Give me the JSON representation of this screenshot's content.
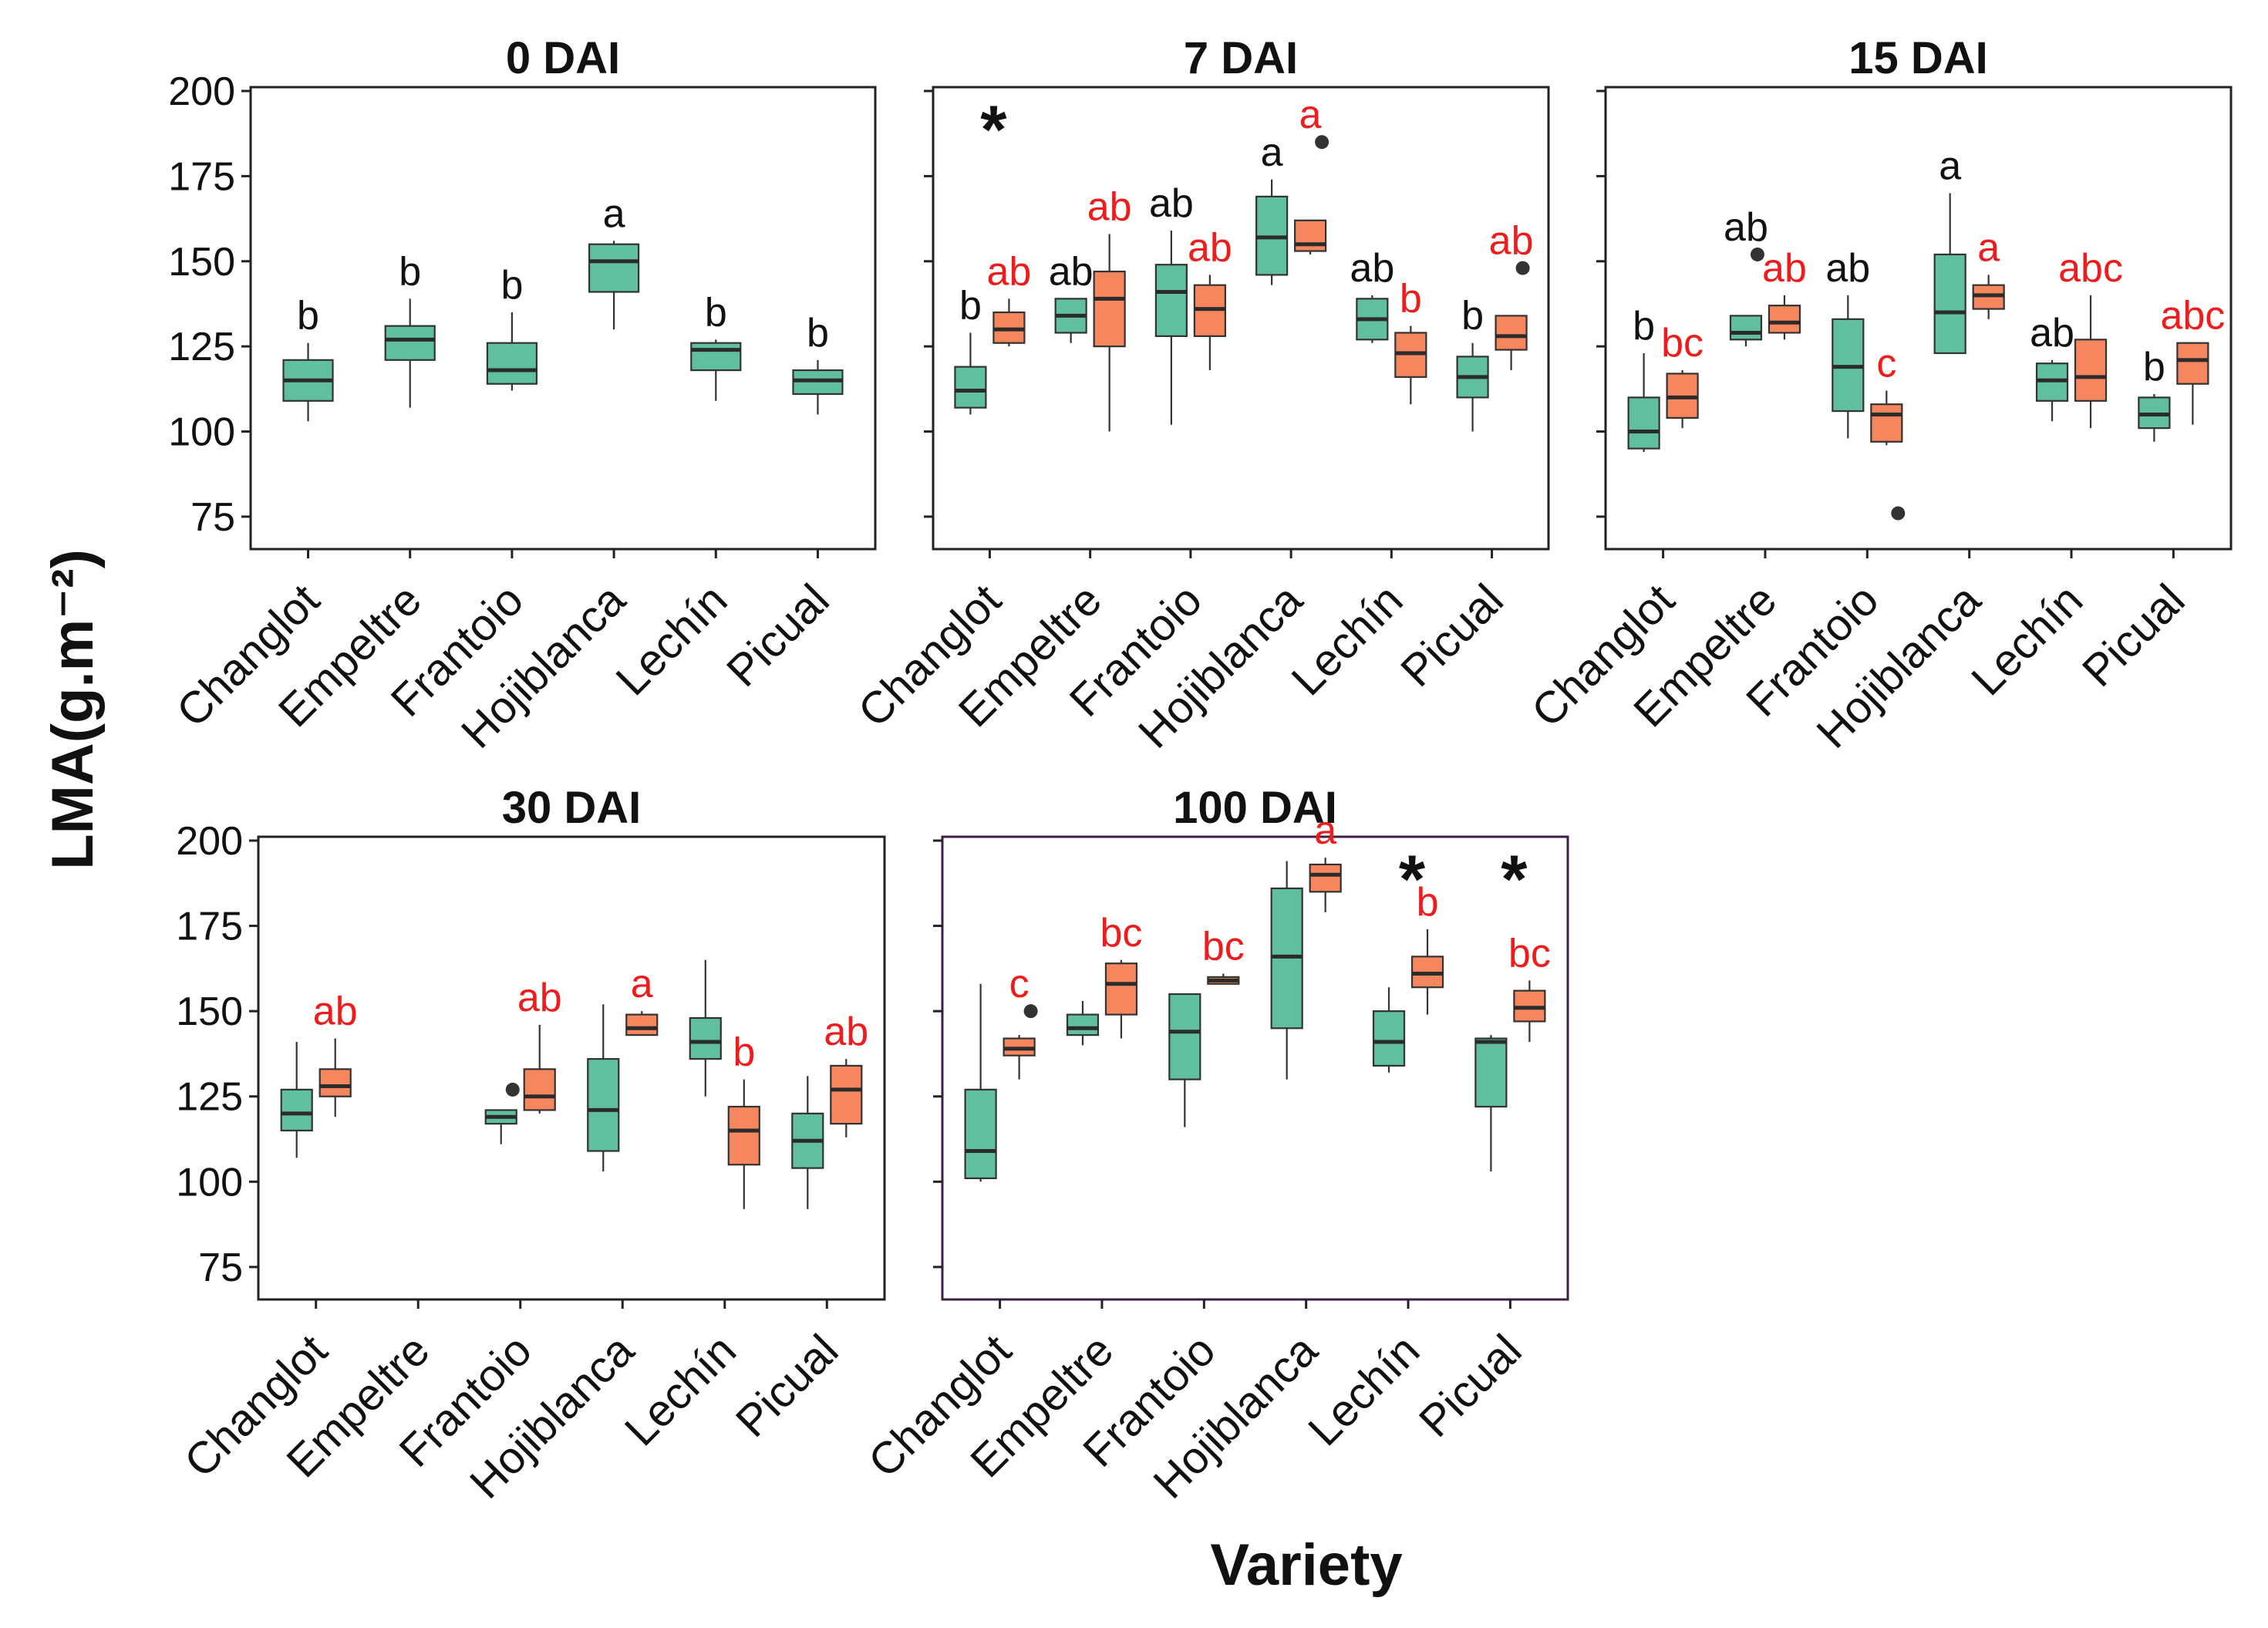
{
  "figure": {
    "ylabel": "LMA(g.m⁻²)",
    "xlabel": "Variety"
  },
  "colors": {
    "series_a": "#5fbf9f",
    "series_b": "#f5865e",
    "letters_a": "#111111",
    "letters_b": "#ee1c1c",
    "frame": "#222222",
    "frame_100": "#3d1f45",
    "median": "#2b2b2b"
  },
  "chart_data": [
    {
      "type": "box",
      "title": "0 DAI",
      "ylim": [
        70,
        200
      ],
      "yticks": [
        75,
        100,
        125,
        150,
        175,
        200
      ],
      "categories": [
        "Changlot",
        "Empeltre",
        "Frantoio",
        "Hojiblanca",
        "Lechín",
        "Picual"
      ],
      "series": [
        {
          "name": "green",
          "boxes": [
            {
              "min": 103,
              "q1": 109,
              "median": 115,
              "q3": 121,
              "max": 126,
              "outliers": [],
              "letter": "b"
            },
            {
              "min": 107,
              "q1": 121,
              "median": 127,
              "q3": 131,
              "max": 139,
              "outliers": [],
              "letter": "b"
            },
            {
              "min": 112,
              "q1": 114,
              "median": 118,
              "q3": 126,
              "max": 135,
              "outliers": [],
              "letter": "b"
            },
            {
              "min": 130,
              "q1": 141,
              "median": 150,
              "q3": 155,
              "max": 156,
              "outliers": [],
              "letter": "a"
            },
            {
              "min": 109,
              "q1": 118,
              "median": 124,
              "q3": 126,
              "max": 127,
              "outliers": [],
              "letter": "b"
            },
            {
              "min": 105,
              "q1": 111,
              "median": 115,
              "q3": 118,
              "max": 121,
              "outliers": [],
              "letter": "b"
            }
          ]
        }
      ],
      "significance": []
    },
    {
      "type": "box",
      "title": "7  DAI",
      "ylim": [
        70,
        200
      ],
      "yticks": [
        75,
        100,
        125,
        150,
        175,
        200
      ],
      "categories": [
        "Changlot",
        "Empeltre",
        "Frantoio",
        "Hojiblanca",
        "Lechín",
        "Picual"
      ],
      "series": [
        {
          "name": "green",
          "boxes": [
            {
              "min": 105,
              "q1": 107,
              "median": 112,
              "q3": 119,
              "max": 129,
              "outliers": [],
              "letter": "b"
            },
            {
              "min": 126,
              "q1": 129,
              "median": 134,
              "q3": 139,
              "max": 139,
              "outliers": [],
              "letter": "ab"
            },
            {
              "min": 102,
              "q1": 128,
              "median": 141,
              "q3": 149,
              "max": 159,
              "outliers": [],
              "letter": "ab"
            },
            {
              "min": 143,
              "q1": 146,
              "median": 157,
              "q3": 169,
              "max": 174,
              "outliers": [],
              "letter": "a"
            },
            {
              "min": 126,
              "q1": 127,
              "median": 133,
              "q3": 139,
              "max": 140,
              "outliers": [],
              "letter": "ab"
            },
            {
              "min": 100,
              "q1": 110,
              "median": 116,
              "q3": 122,
              "max": 126,
              "outliers": [],
              "letter": "b"
            }
          ]
        },
        {
          "name": "orange",
          "boxes": [
            {
              "min": 125,
              "q1": 126,
              "median": 130,
              "q3": 135,
              "max": 139,
              "outliers": [],
              "letter": "ab"
            },
            {
              "min": 100,
              "q1": 125,
              "median": 139,
              "q3": 147,
              "max": 158,
              "outliers": [],
              "letter": "ab"
            },
            {
              "min": 118,
              "q1": 128,
              "median": 136,
              "q3": 143,
              "max": 146,
              "outliers": [],
              "letter": "ab"
            },
            {
              "min": 152,
              "q1": 153,
              "median": 155,
              "q3": 162,
              "max": 162,
              "outliers": [
                185
              ],
              "letter": "a"
            },
            {
              "min": 108,
              "q1": 116,
              "median": 123,
              "q3": 129,
              "max": 131,
              "outliers": [],
              "letter": "b"
            },
            {
              "min": 118,
              "q1": 124,
              "median": 128,
              "q3": 134,
              "max": 134,
              "outliers": [
                148
              ],
              "letter": "ab"
            }
          ]
        }
      ],
      "significance": [
        {
          "category": "Changlot",
          "mark": "*"
        }
      ]
    },
    {
      "type": "box",
      "title": "15 DAI",
      "ylim": [
        70,
        200
      ],
      "yticks": [
        75,
        100,
        125,
        150,
        175,
        200
      ],
      "categories": [
        "Changlot",
        "Empeltre",
        "Frantoio",
        "Hojiblanca",
        "Lechín",
        "Picual"
      ],
      "series": [
        {
          "name": "green",
          "boxes": [
            {
              "min": 94,
              "q1": 95,
              "median": 100,
              "q3": 110,
              "max": 123,
              "outliers": [],
              "letter": "b"
            },
            {
              "min": 125,
              "q1": 127,
              "median": 129,
              "q3": 134,
              "max": 134,
              "outliers": [
                152
              ],
              "letter": "ab"
            },
            {
              "min": 98,
              "q1": 106,
              "median": 119,
              "q3": 133,
              "max": 140,
              "outliers": [],
              "letter": "ab"
            },
            {
              "min": 123,
              "q1": 123,
              "median": 135,
              "q3": 152,
              "max": 170,
              "outliers": [],
              "letter": "a"
            },
            {
              "min": 103,
              "q1": 109,
              "median": 115,
              "q3": 120,
              "max": 121,
              "outliers": [],
              "letter": "ab"
            },
            {
              "min": 97,
              "q1": 101,
              "median": 105,
              "q3": 110,
              "max": 111,
              "outliers": [],
              "letter": "b"
            }
          ]
        },
        {
          "name": "orange",
          "boxes": [
            {
              "min": 101,
              "q1": 104,
              "median": 110,
              "q3": 117,
              "max": 118,
              "outliers": [],
              "letter": "bc"
            },
            {
              "min": 127,
              "q1": 129,
              "median": 132,
              "q3": 137,
              "max": 140,
              "outliers": [],
              "letter": "ab"
            },
            {
              "min": 96,
              "q1": 97,
              "median": 105,
              "q3": 108,
              "max": 112,
              "outliers": [
                76
              ],
              "letter": "c"
            },
            {
              "min": 133,
              "q1": 136,
              "median": 140,
              "q3": 143,
              "max": 146,
              "outliers": [],
              "letter": "a"
            },
            {
              "min": 101,
              "q1": 109,
              "median": 116,
              "q3": 127,
              "max": 140,
              "outliers": [],
              "letter": "abc"
            },
            {
              "min": 102,
              "q1": 114,
              "median": 121,
              "q3": 126,
              "max": 126,
              "outliers": [],
              "letter": "abc"
            }
          ]
        }
      ],
      "significance": []
    },
    {
      "type": "box",
      "title": "30 DAI",
      "ylim": [
        70,
        200
      ],
      "yticks": [
        75,
        100,
        125,
        150,
        175,
        200
      ],
      "categories": [
        "Changlot",
        "Empeltre",
        "Frantoio",
        "Hojiblanca",
        "Lechín",
        "Picual"
      ],
      "series": [
        {
          "name": "green",
          "boxes": [
            {
              "min": 107,
              "q1": 115,
              "median": 120,
              "q3": 127,
              "max": 141,
              "outliers": [],
              "letter": ""
            },
            null,
            {
              "min": 111,
              "q1": 117,
              "median": 119,
              "q3": 121,
              "max": 121,
              "outliers": [
                127
              ],
              "letter": ""
            },
            {
              "min": 103,
              "q1": 109,
              "median": 121,
              "q3": 136,
              "max": 152,
              "outliers": [],
              "letter": ""
            },
            {
              "min": 125,
              "q1": 136,
              "median": 141,
              "q3": 148,
              "max": 165,
              "outliers": [],
              "letter": ""
            },
            {
              "min": 92,
              "q1": 104,
              "median": 112,
              "q3": 120,
              "max": 131,
              "outliers": [],
              "letter": ""
            }
          ]
        },
        {
          "name": "orange",
          "boxes": [
            {
              "min": 119,
              "q1": 125,
              "median": 128,
              "q3": 133,
              "max": 142,
              "outliers": [],
              "letter": "ab"
            },
            null,
            {
              "min": 120,
              "q1": 121,
              "median": 125,
              "q3": 133,
              "max": 146,
              "outliers": [],
              "letter": "ab"
            },
            {
              "min": 143,
              "q1": 143,
              "median": 145,
              "q3": 149,
              "max": 150,
              "outliers": [],
              "letter": "a"
            },
            {
              "min": 92,
              "q1": 105,
              "median": 115,
              "q3": 122,
              "max": 130,
              "outliers": [],
              "letter": "b"
            },
            {
              "min": 113,
              "q1": 117,
              "median": 127,
              "q3": 134,
              "max": 136,
              "outliers": [],
              "letter": "ab"
            }
          ]
        }
      ],
      "significance": []
    },
    {
      "type": "box",
      "title": "100 DAI",
      "ylim": [
        70,
        200
      ],
      "yticks": [
        75,
        100,
        125,
        150,
        175,
        200
      ],
      "categories": [
        "Changlot",
        "Empeltre",
        "Frantoio",
        "Hojiblanca",
        "Lechín",
        "Picual"
      ],
      "series": [
        {
          "name": "green",
          "boxes": [
            {
              "min": 100,
              "q1": 101,
              "median": 109,
              "q3": 127,
              "max": 158,
              "outliers": [],
              "letter": ""
            },
            {
              "min": 140,
              "q1": 143,
              "median": 145,
              "q3": 149,
              "max": 153,
              "outliers": [],
              "letter": ""
            },
            {
              "min": 116,
              "q1": 130,
              "median": 144,
              "q3": 155,
              "max": 155,
              "outliers": [],
              "letter": ""
            },
            {
              "min": 130,
              "q1": 145,
              "median": 166,
              "q3": 186,
              "max": 194,
              "outliers": [],
              "letter": ""
            },
            {
              "min": 132,
              "q1": 134,
              "median": 141,
              "q3": 150,
              "max": 157,
              "outliers": [],
              "letter": ""
            },
            {
              "min": 103,
              "q1": 122,
              "median": 141,
              "q3": 142,
              "max": 143,
              "outliers": [],
              "letter": ""
            }
          ]
        },
        {
          "name": "orange",
          "boxes": [
            {
              "min": 130,
              "q1": 137,
              "median": 139,
              "q3": 142,
              "max": 143,
              "outliers": [
                150
              ],
              "letter": "c"
            },
            {
              "min": 142,
              "q1": 149,
              "median": 158,
              "q3": 164,
              "max": 165,
              "outliers": [],
              "letter": "bc"
            },
            {
              "min": 158,
              "q1": 158,
              "median": 159,
              "q3": 160,
              "max": 161,
              "outliers": [],
              "letter": "bc"
            },
            {
              "min": 179,
              "q1": 185,
              "median": 190,
              "q3": 193,
              "max": 195,
              "outliers": [],
              "letter": "a"
            },
            {
              "min": 149,
              "q1": 157,
              "median": 161,
              "q3": 166,
              "max": 174,
              "outliers": [],
              "letter": "b"
            },
            {
              "min": 141,
              "q1": 147,
              "median": 151,
              "q3": 156,
              "max": 159,
              "outliers": [],
              "letter": "bc"
            }
          ]
        }
      ],
      "significance": [
        {
          "category": "Lechín",
          "mark": "*"
        },
        {
          "category": "Picual",
          "mark": "*"
        }
      ]
    }
  ]
}
